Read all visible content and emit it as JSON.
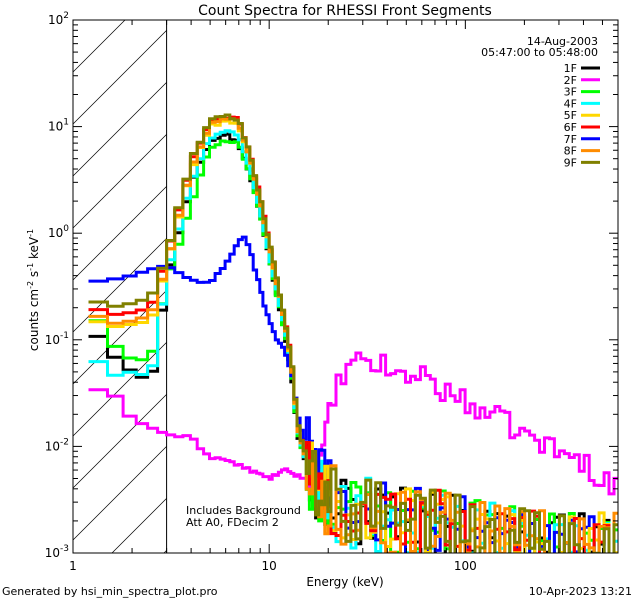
{
  "chart_data": {
    "type": "line",
    "title": "Count Spectra for RHESSI Front Segments",
    "xlabel": "Energy (keV)",
    "ylabel_parts": {
      "base": "counts cm",
      "exp1": "-2",
      "mid": " s",
      "exp2": "-1",
      "unit": " keV",
      "exp3": "-1"
    },
    "x_scale": "log",
    "y_scale": "log",
    "xlim": [
      1,
      600
    ],
    "ylim": [
      0.001,
      100
    ],
    "x_ticks": [
      {
        "value": 1,
        "label": "1"
      },
      {
        "value": 10,
        "label": "10"
      },
      {
        "value": 100,
        "label": "100"
      }
    ],
    "y_ticks": [
      {
        "value": 0.001,
        "base": "10",
        "exp": "-3"
      },
      {
        "value": 0.01,
        "base": "10",
        "exp": "-2"
      },
      {
        "value": 0.1,
        "base": "10",
        "exp": "-1"
      },
      {
        "value": 1,
        "base": "10",
        "exp": "0"
      },
      {
        "value": 10,
        "base": "10",
        "exp": "1"
      },
      {
        "value": 100,
        "base": "10",
        "exp": "2"
      }
    ],
    "hatched_region_x": [
      1,
      3
    ],
    "date": "14-Aug-2003",
    "time_range": "05:47:00 to 05:48:00",
    "annotations": [
      "Includes Background",
      "Att A0, FDecim 2"
    ],
    "legend_position": "top-right",
    "series": [
      {
        "name": "1F",
        "color": "#000000",
        "knots": [
          [
            1.2,
            0.15
          ],
          [
            1.5,
            0.08
          ],
          [
            2,
            0.05
          ],
          [
            2.5,
            0.04
          ],
          [
            3,
            0.35
          ],
          [
            4,
            3
          ],
          [
            5,
            7.5
          ],
          [
            6,
            8.5
          ],
          [
            7,
            7
          ],
          [
            8,
            3.6
          ],
          [
            9,
            1.5
          ],
          [
            10,
            0.6
          ],
          [
            12,
            0.12
          ],
          [
            13,
            0.05
          ],
          [
            14,
            0.013
          ],
          [
            17,
            0.004
          ],
          [
            25,
            0.0025
          ],
          [
            50,
            0.002
          ],
          [
            100,
            0.0016
          ],
          [
            200,
            0.0012
          ],
          [
            300,
            0.0011
          ],
          [
            500,
            0.0011
          ]
        ]
      },
      {
        "name": "2F",
        "color": "#ff00ff",
        "knots": [
          [
            1.2,
            0.03
          ],
          [
            1.5,
            0.038
          ],
          [
            2,
            0.018
          ],
          [
            2.5,
            0.015
          ],
          [
            3,
            0.013
          ],
          [
            4,
            0.012
          ],
          [
            5,
            0.008
          ],
          [
            6,
            0.0075
          ],
          [
            8,
            0.006
          ],
          [
            10,
            0.005
          ],
          [
            12,
            0.006
          ],
          [
            15,
            0.005
          ],
          [
            18,
            0.006
          ],
          [
            20,
            0.018
          ],
          [
            22,
            0.035
          ],
          [
            25,
            0.052
          ],
          [
            30,
            0.063
          ],
          [
            40,
            0.055
          ],
          [
            50,
            0.042
          ],
          [
            60,
            0.052
          ],
          [
            70,
            0.037
          ],
          [
            100,
            0.026
          ],
          [
            150,
            0.018
          ],
          [
            200,
            0.013
          ],
          [
            300,
            0.009
          ],
          [
            400,
            0.007
          ],
          [
            500,
            0.005
          ],
          [
            600,
            0.004
          ]
        ]
      },
      {
        "name": "3F",
        "color": "#00ff00",
        "knots": [
          [
            1.2,
            0.24
          ],
          [
            1.5,
            0.1
          ],
          [
            2,
            0.065
          ],
          [
            2.5,
            0.065
          ],
          [
            3,
            0.35
          ],
          [
            4,
            1.8
          ],
          [
            5,
            6.5
          ],
          [
            6,
            7.5
          ],
          [
            7,
            7
          ],
          [
            8,
            3.5
          ],
          [
            9,
            1.5
          ],
          [
            10,
            0.6
          ],
          [
            12,
            0.12
          ],
          [
            13,
            0.05
          ],
          [
            14,
            0.013
          ],
          [
            17,
            0.004
          ],
          [
            25,
            0.0025
          ],
          [
            50,
            0.002
          ],
          [
            100,
            0.0016
          ],
          [
            200,
            0.0012
          ],
          [
            300,
            0.0011
          ],
          [
            500,
            0.0011
          ]
        ]
      },
      {
        "name": "4F",
        "color": "#00ffff",
        "knots": [
          [
            1.2,
            0.09
          ],
          [
            1.5,
            0.045
          ],
          [
            2,
            0.05
          ],
          [
            2.5,
            0.045
          ],
          [
            3,
            0.4
          ],
          [
            4,
            3
          ],
          [
            5,
            8
          ],
          [
            6,
            9
          ],
          [
            7,
            8.5
          ],
          [
            8,
            4
          ],
          [
            9,
            1.6
          ],
          [
            10,
            0.65
          ],
          [
            12,
            0.13
          ],
          [
            13,
            0.055
          ],
          [
            14,
            0.014
          ],
          [
            17,
            0.004
          ],
          [
            25,
            0.0025
          ],
          [
            50,
            0.002
          ],
          [
            100,
            0.0016
          ],
          [
            200,
            0.0012
          ],
          [
            300,
            0.0011
          ],
          [
            500,
            0.0011
          ]
        ]
      },
      {
        "name": "5F",
        "color": "#ffd700",
        "knots": [
          [
            1.2,
            0.17
          ],
          [
            1.5,
            0.13
          ],
          [
            2,
            0.14
          ],
          [
            2.5,
            0.15
          ],
          [
            3,
            0.5
          ],
          [
            4,
            4
          ],
          [
            5,
            10
          ],
          [
            6,
            11.5
          ],
          [
            7,
            10.5
          ],
          [
            8,
            5
          ],
          [
            9,
            2
          ],
          [
            10,
            0.8
          ],
          [
            12,
            0.15
          ],
          [
            13,
            0.06
          ],
          [
            14,
            0.015
          ],
          [
            17,
            0.004
          ],
          [
            25,
            0.0025
          ],
          [
            50,
            0.002
          ],
          [
            100,
            0.0016
          ],
          [
            200,
            0.0012
          ],
          [
            300,
            0.0011
          ],
          [
            500,
            0.0011
          ]
        ]
      },
      {
        "name": "6F",
        "color": "#ff0000",
        "knots": [
          [
            1.2,
            0.22
          ],
          [
            1.5,
            0.17
          ],
          [
            2,
            0.18
          ],
          [
            2.5,
            0.2
          ],
          [
            3,
            0.6
          ],
          [
            4,
            4.5
          ],
          [
            5,
            11
          ],
          [
            6,
            12.5
          ],
          [
            7,
            11.5
          ],
          [
            8,
            5.5
          ],
          [
            9,
            2.2
          ],
          [
            10,
            0.85
          ],
          [
            12,
            0.16
          ],
          [
            13,
            0.065
          ],
          [
            14,
            0.016
          ],
          [
            17,
            0.004
          ],
          [
            25,
            0.0025
          ],
          [
            50,
            0.002
          ],
          [
            100,
            0.0016
          ],
          [
            200,
            0.0012
          ],
          [
            300,
            0.0011
          ],
          [
            500,
            0.0011
          ]
        ]
      },
      {
        "name": "7F",
        "color": "#0000ff",
        "knots": [
          [
            1.2,
            0.35
          ],
          [
            1.5,
            0.36
          ],
          [
            2,
            0.4
          ],
          [
            2.5,
            0.46
          ],
          [
            3,
            0.5
          ],
          [
            3.5,
            0.42
          ],
          [
            4,
            0.37
          ],
          [
            5,
            0.33
          ],
          [
            6,
            0.5
          ],
          [
            7,
            0.85
          ],
          [
            7.5,
            0.95
          ],
          [
            8,
            0.7
          ],
          [
            9,
            0.3
          ],
          [
            10,
            0.15
          ],
          [
            11,
            0.1
          ],
          [
            12,
            0.08
          ],
          [
            13,
            0.05
          ],
          [
            14,
            0.02
          ],
          [
            17,
            0.005
          ],
          [
            25,
            0.0025
          ],
          [
            50,
            0.002
          ],
          [
            100,
            0.0016
          ],
          [
            200,
            0.0012
          ],
          [
            300,
            0.0011
          ],
          [
            500,
            0.0011
          ]
        ]
      },
      {
        "name": "8F",
        "color": "#ff8c00",
        "knots": [
          [
            1.2,
            0.2
          ],
          [
            1.5,
            0.14
          ],
          [
            2,
            0.15
          ],
          [
            2.5,
            0.17
          ],
          [
            3,
            0.5
          ],
          [
            4,
            4.2
          ],
          [
            5,
            10.5
          ],
          [
            6,
            12
          ],
          [
            7,
            11
          ],
          [
            8,
            5.2
          ],
          [
            9,
            2
          ],
          [
            10,
            0.8
          ],
          [
            12,
            0.15
          ],
          [
            13,
            0.06
          ],
          [
            14,
            0.015
          ],
          [
            17,
            0.004
          ],
          [
            25,
            0.0025
          ],
          [
            50,
            0.002
          ],
          [
            100,
            0.0016
          ],
          [
            200,
            0.0012
          ],
          [
            300,
            0.0011
          ],
          [
            500,
            0.0011
          ]
        ]
      },
      {
        "name": "9F",
        "color": "#808000",
        "knots": [
          [
            1.2,
            0.26
          ],
          [
            1.5,
            0.2
          ],
          [
            2,
            0.22
          ],
          [
            2.5,
            0.25
          ],
          [
            3,
            0.6
          ],
          [
            4,
            4.8
          ],
          [
            5,
            11.5
          ],
          [
            6,
            12.5
          ],
          [
            7,
            11.5
          ],
          [
            8,
            5.5
          ],
          [
            9,
            2.2
          ],
          [
            10,
            0.85
          ],
          [
            12,
            0.16
          ],
          [
            13,
            0.065
          ],
          [
            14,
            0.016
          ],
          [
            17,
            0.004
          ],
          [
            25,
            0.0025
          ],
          [
            50,
            0.002
          ],
          [
            100,
            0.0016
          ],
          [
            200,
            0.0012
          ],
          [
            300,
            0.0011
          ],
          [
            500,
            0.0011
          ]
        ]
      }
    ]
  },
  "footer": {
    "generated_by": "Generated by hsi_min_spectra_plot.pro",
    "timestamp": "10-Apr-2023 13:21"
  }
}
